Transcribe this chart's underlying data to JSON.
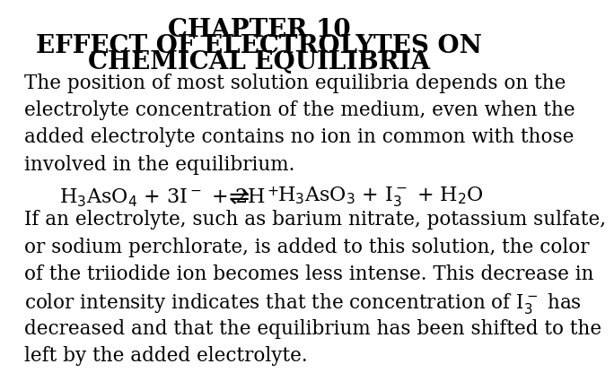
{
  "title_line1": "CHAPTER 10",
  "title_line2": "EFFECT OF ELECTROLYTES ON",
  "title_line3": "CHEMICAL EQUILIBRIA",
  "p1_lines": [
    "The position of most solution equilibria depends on the",
    "electrolyte concentration of the medium, even when the",
    "added electrolyte contains no ion in common with those",
    "involved in the equilibrium."
  ],
  "eq_left": "H$_3$AsO$_4$ + 3I$^-$ + 2H$^+$",
  "eq_arrow": "$\\rightleftharpoons$",
  "eq_right": "H$_3$AsO$_3$ + I$_3^-$ + H$_2$O",
  "p2_lines": [
    "If an electrolyte, such as barium nitrate, potassium sulfate,",
    "or sodium perchlorate, is added to this solution, the color",
    "of the triiodide ion becomes less intense. This decrease in",
    "color intensity indicates that the concentration of I$_3^-$ has",
    "decreased and that the equilibrium has been shifted to the",
    "left by the added electrolyte."
  ],
  "bg_color": "#ffffff",
  "text_color": "#000000",
  "title_fontsize": 20,
  "body_fontsize": 15.5,
  "equation_fontsize": 16
}
